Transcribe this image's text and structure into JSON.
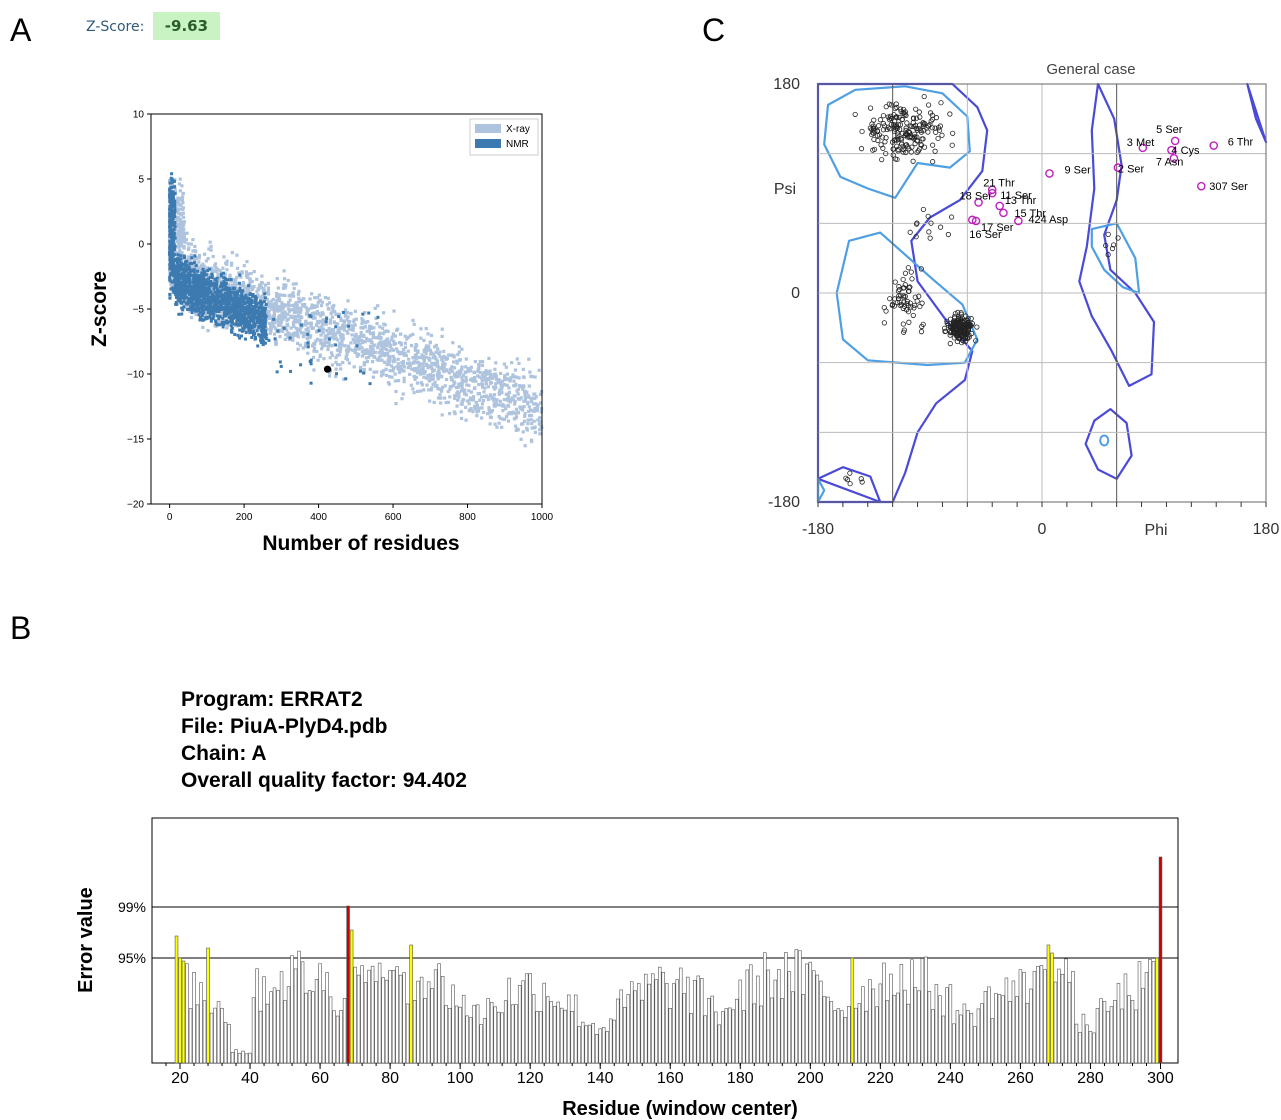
{
  "panels": {
    "a": "A",
    "b": "B",
    "c": "C"
  },
  "zscore": {
    "label": "Z-Score:",
    "value": "-9.63"
  },
  "errat": {
    "program": "Program: ERRAT2",
    "file": "File: PiuA-PlyD4.pdb",
    "chain": "Chain: A",
    "quality": "Overall quality factor: 94.402"
  },
  "chart_data": [
    {
      "type": "scatter",
      "title": "",
      "xlabel": "Number of residues",
      "ylabel": "Z-score",
      "xlim": [
        -50,
        1000
      ],
      "ylim": [
        -20,
        10
      ],
      "xticks": [
        0,
        200,
        400,
        600,
        800,
        1000
      ],
      "yticks": [
        10,
        5,
        0,
        -5,
        -10,
        -15,
        -20
      ],
      "legend_position": "top-right",
      "series": [
        {
          "name": "X-ray",
          "color": "#aec3de",
          "description_points": "dense cloud from (0,0) to (1000,-13)"
        },
        {
          "name": "NMR",
          "color": "#3c7ab0",
          "description_points": "dense cloud from (0,0) to (300,-8)"
        }
      ],
      "highlight_point": {
        "x": 424,
        "y": -9.63,
        "color": "#000000"
      }
    },
    {
      "type": "scatter",
      "title": "General case",
      "xlabel": "Phi",
      "ylabel": "Psi",
      "xlim": [
        -180,
        180
      ],
      "ylim": [
        -180,
        180
      ],
      "xticks": [
        -180,
        0,
        180
      ],
      "yticks": [
        180,
        0,
        -180
      ],
      "grid": true,
      "labeled_points": [
        {
          "label": "5 Ser",
          "x": 107,
          "y": 131
        },
        {
          "label": "3 Met",
          "x": 81,
          "y": 125
        },
        {
          "label": "4 Cys",
          "x": 104,
          "y": 123
        },
        {
          "label": "6 Thr",
          "x": 138,
          "y": 127
        },
        {
          "label": "7 Asn",
          "x": 106,
          "y": 116
        },
        {
          "label": "2 Ser",
          "x": 61,
          "y": 108
        },
        {
          "label": "9 Ser",
          "x": 6,
          "y": 103
        },
        {
          "label": "307 Ser",
          "x": 128,
          "y": 92
        },
        {
          "label": "21 Thr",
          "x": -40,
          "y": 89
        },
        {
          "label": "11 Ser",
          "x": -40,
          "y": 86
        },
        {
          "label": "13 Thr",
          "x": -34,
          "y": 75
        },
        {
          "label": "18 Ser",
          "x": -51,
          "y": 78
        },
        {
          "label": "15 Thr",
          "x": -31,
          "y": 69
        },
        {
          "label": "17 Ser",
          "x": -53,
          "y": 62
        },
        {
          "label": "16 Ser",
          "x": -56,
          "y": 63
        },
        {
          "label": "424 Asp",
          "x": -19,
          "y": 62
        }
      ]
    },
    {
      "type": "bar",
      "xlabel": "Residue (window center)",
      "ylabel": "Error value",
      "xticks": [
        20,
        40,
        60,
        80,
        100,
        120,
        140,
        160,
        180,
        200,
        220,
        240,
        260,
        280,
        300
      ],
      "threshold_labels": [
        "99%",
        "95%"
      ],
      "thresholds": [
        99,
        95
      ],
      "colors": {
        "normal": "#ffffff",
        "warning": "#ffff00",
        "error": "#cc0000"
      },
      "x_range": [
        16,
        302
      ]
    }
  ]
}
